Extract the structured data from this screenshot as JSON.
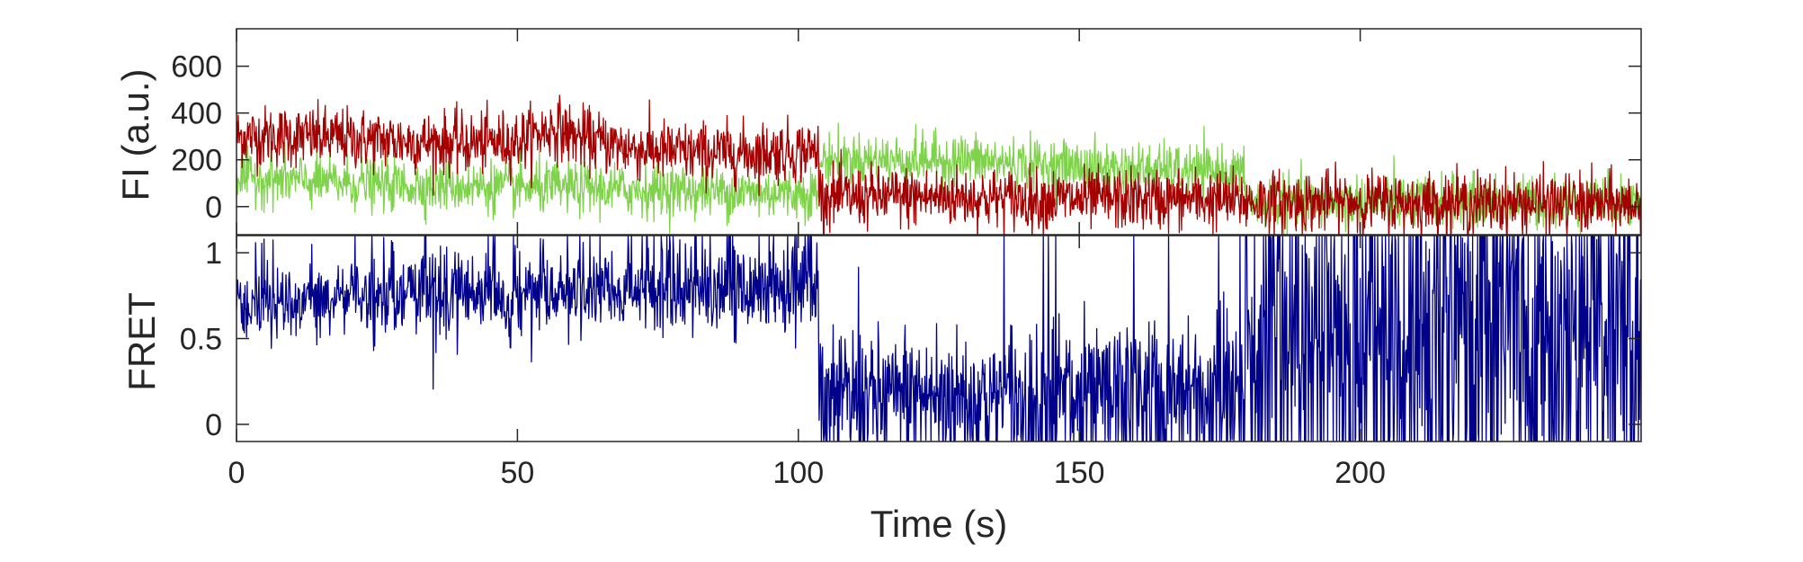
{
  "chart_data": [
    {
      "type": "line",
      "ylabel": "FI (a.u.)",
      "xlabel": "",
      "xlim": [
        0,
        250
      ],
      "ylim": [
        -120,
        760
      ],
      "yticks": [
        0,
        200,
        400,
        600
      ],
      "xticks": [
        0,
        50,
        100,
        150,
        200
      ],
      "grid": false,
      "sample_interval_s": 0.1,
      "series": [
        {
          "color": "#a40000",
          "description_points": {
            "x": [
              0,
              10,
              20,
              30,
              40,
              50,
              57,
              60,
              70,
              80,
              90,
              103.5,
              104,
              110,
              120,
              130,
              140,
              150,
              160,
              170,
              179,
              180,
              190,
              200,
              210,
              220,
              230,
              240,
              250
            ],
            "y": [
              300,
              300,
              290,
              280,
              270,
              280,
              340,
              300,
              250,
              230,
              230,
              240,
              40,
              40,
              40,
              40,
              30,
              30,
              30,
              30,
              25,
              20,
              20,
              20,
              15,
              15,
              15,
              10,
              10
            ]
          },
          "noise_sd": 65
        },
        {
          "color": "#7ed34a",
          "description_points": {
            "x": [
              0,
              10,
              20,
              30,
              40,
              50,
              60,
              70,
              80,
              90,
              103.5,
              104,
              110,
              120,
              130,
              140,
              150,
              160,
              170,
              179,
              180,
              190,
              200,
              210,
              220,
              230,
              240,
              250
            ],
            "y": [
              130,
              110,
              100,
              90,
              90,
              80,
              80,
              70,
              70,
              60,
              60,
              200,
              200,
              200,
              200,
              180,
              170,
              160,
              150,
              140,
              20,
              20,
              20,
              20,
              20,
              20,
              20,
              20
            ]
          },
          "noise_sd": 55
        }
      ]
    },
    {
      "type": "line",
      "ylabel": "FRET",
      "xlabel": "Time (s)",
      "xlim": [
        0,
        250
      ],
      "ylim": [
        -0.1,
        1.1
      ],
      "yticks": [
        0,
        0.5,
        1
      ],
      "xticks": [
        0,
        50,
        100,
        150,
        200
      ],
      "grid": false,
      "series": [
        {
          "color": "#00008b",
          "description": "FRET = red / (red + green), clipped to axis range"
        }
      ]
    }
  ]
}
